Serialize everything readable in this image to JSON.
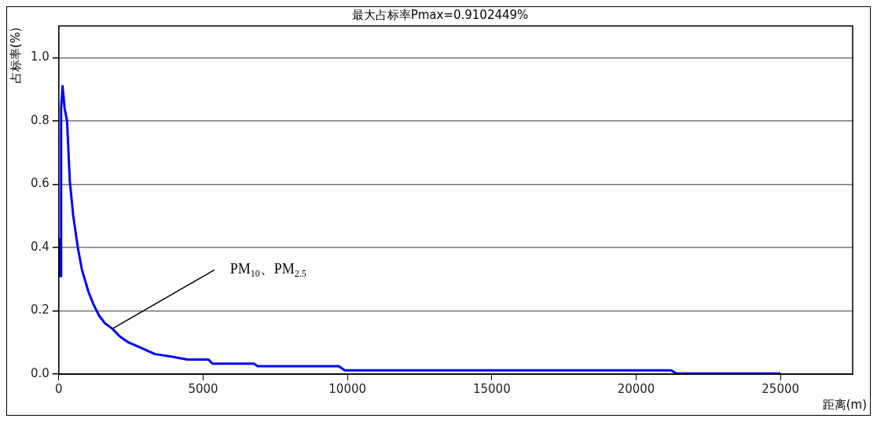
{
  "chart_data": {
    "type": "line",
    "title": "最大占标率Pmax=0.9102449%",
    "xlabel": "距离(m)",
    "ylabel": "占标率(%)",
    "x": [
      0,
      30,
      60,
      80,
      130,
      200,
      285,
      380,
      500,
      657,
      800,
      1025,
      1200,
      1394,
      1600,
      1857,
      2100,
      2411,
      2800,
      3334,
      3900,
      4443,
      5183,
      5322,
      6754,
      6893,
      9700,
      9900,
      21200,
      21400,
      25000
    ],
    "series": [
      {
        "color": "#0000ff",
        "values": [
          0.43,
          0.31,
          0.31,
          0.84,
          0.91,
          0.84,
          0.8,
          0.61,
          0.5,
          0.4,
          0.33,
          0.26,
          0.22,
          0.185,
          0.16,
          0.143,
          0.12,
          0.1,
          0.085,
          0.063,
          0.055,
          0.046,
          0.046,
          0.033,
          0.033,
          0.025,
          0.025,
          0.012,
          0.012,
          0.002,
          0.002
        ]
      }
    ],
    "xlim": [
      0,
      27500
    ],
    "xticks": [
      0,
      5000,
      10000,
      15000,
      20000,
      25000
    ],
    "ylim": [
      0,
      1.1
    ],
    "yticks": [
      {
        "value": 0,
        "label": "0.0"
      },
      0.2,
      0.4,
      0.6,
      0.8,
      {
        "value": 1,
        "label": "1.0"
      }
    ],
    "grid": "y",
    "legend": false,
    "marker": "none",
    "annotations": [
      {
        "text": "PM$_{10}$、PM$_{2.5}$",
        "x": 1850,
        "y": 0.143
      }
    ]
  }
}
